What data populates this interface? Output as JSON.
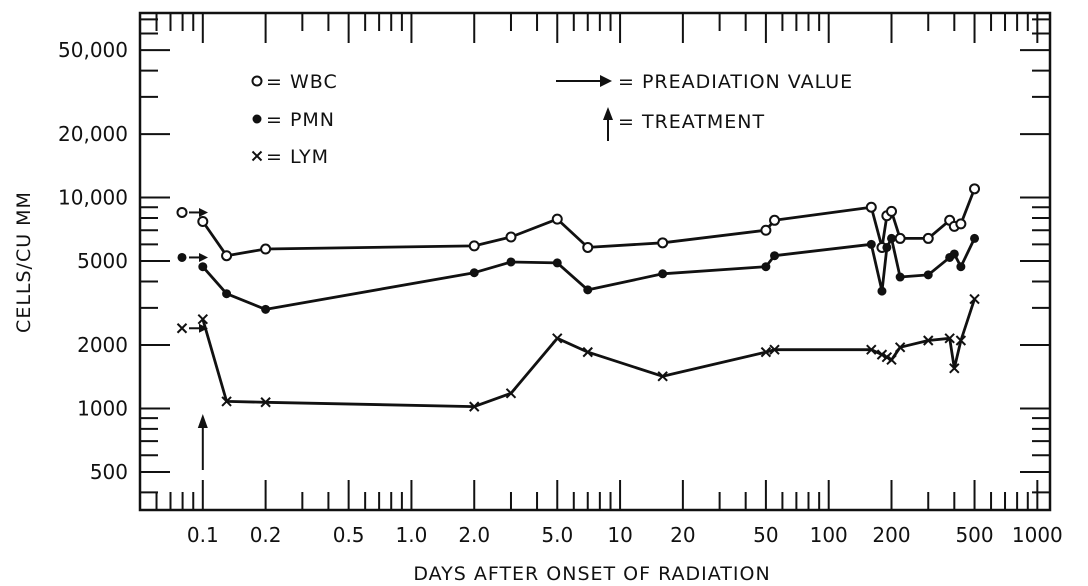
{
  "chart_data": {
    "type": "line",
    "x_scale": "log",
    "y_scale": "log",
    "xlabel": "DAYS AFTER ONSET OF RADIATION",
    "ylabel": "CELLS/CU MM",
    "xlim": [
      0.05,
      1150
    ],
    "ylim": [
      330,
      75000
    ],
    "x_ticks": [
      {
        "value": 0.1,
        "label": "0.1"
      },
      {
        "value": 0.2,
        "label": "0.2"
      },
      {
        "value": 0.5,
        "label": "0.5"
      },
      {
        "value": 1.0,
        "label": "1.0"
      },
      {
        "value": 2.0,
        "label": "2.0"
      },
      {
        "value": 5.0,
        "label": "5.0"
      },
      {
        "value": 10,
        "label": "10"
      },
      {
        "value": 20,
        "label": "20"
      },
      {
        "value": 50,
        "label": "50"
      },
      {
        "value": 100,
        "label": "100"
      },
      {
        "value": 200,
        "label": "200"
      },
      {
        "value": 500,
        "label": "500"
      },
      {
        "value": 1000,
        "label": "1000"
      }
    ],
    "y_ticks": [
      {
        "value": 500,
        "label": "500"
      },
      {
        "value": 1000,
        "label": "1000"
      },
      {
        "value": 2000,
        "label": "2000"
      },
      {
        "value": 5000,
        "label": "5000"
      },
      {
        "value": 10000,
        "label": "10,000"
      },
      {
        "value": 20000,
        "label": "20,000"
      },
      {
        "value": 50000,
        "label": "50,000"
      }
    ],
    "legend": {
      "placement": "top-left",
      "entries": [
        {
          "marker": "open-circle",
          "label": "= WBC"
        },
        {
          "marker": "filled-circle",
          "label": "= PMN"
        },
        {
          "marker": "x",
          "label": "= LYM"
        }
      ]
    },
    "annotations": [
      {
        "symbol": "right-arrow",
        "label": "= PREADIATION VALUE"
      },
      {
        "symbol": "up-arrow",
        "label": "= TREATMENT"
      }
    ],
    "preradiation_values": [
      {
        "series": "WBC",
        "value": 8500
      },
      {
        "series": "PMN",
        "value": 5200
      },
      {
        "series": "LYM",
        "value": 2400
      }
    ],
    "treatment_day": 0.1,
    "series": [
      {
        "name": "WBC",
        "marker": "open-circle",
        "x": [
          0.1,
          0.13,
          0.2,
          2.0,
          3.0,
          5.0,
          7.0,
          16,
          50,
          55,
          160,
          180,
          190,
          200,
          220,
          300,
          380,
          400,
          430,
          500
        ],
        "y": [
          7700,
          5300,
          5700,
          5900,
          6500,
          7900,
          5800,
          6100,
          7000,
          7800,
          9000,
          5800,
          8200,
          8600,
          6400,
          6400,
          7800,
          7300,
          7500,
          11000
        ]
      },
      {
        "name": "PMN",
        "marker": "filled-circle",
        "x": [
          0.1,
          0.13,
          0.2,
          2.0,
          3.0,
          5.0,
          7.0,
          16,
          50,
          55,
          160,
          180,
          190,
          200,
          220,
          300,
          380,
          400,
          430,
          500
        ],
        "y": [
          4700,
          3500,
          2950,
          4400,
          4950,
          4900,
          3650,
          4350,
          4700,
          5300,
          6000,
          3600,
          5800,
          6400,
          4200,
          4300,
          5200,
          5400,
          4700,
          6400
        ]
      },
      {
        "name": "LYM",
        "marker": "x",
        "x": [
          0.1,
          0.13,
          0.2,
          2.0,
          3.0,
          5.0,
          7.0,
          16,
          50,
          55,
          160,
          180,
          190,
          200,
          220,
          300,
          380,
          400,
          430,
          500
        ],
        "y": [
          2650,
          1080,
          1070,
          1020,
          1180,
          2150,
          1850,
          1420,
          1850,
          1900,
          1900,
          1800,
          1750,
          1700,
          1950,
          2100,
          2150,
          1550,
          2100,
          3300
        ]
      }
    ]
  }
}
